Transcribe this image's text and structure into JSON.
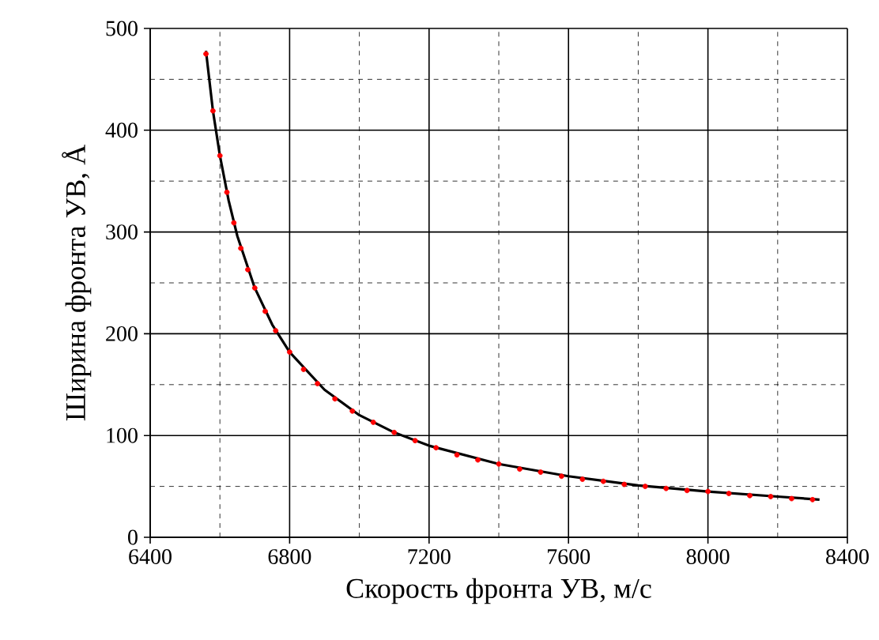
{
  "chart_data": {
    "type": "line",
    "xlabel": "Скорость фронта УВ, м/с",
    "ylabel": "Ширина фронта УВ, Å",
    "xlim": [
      6400,
      8400
    ],
    "xticks": [
      6400,
      6800,
      7200,
      7600,
      8000,
      8400
    ],
    "ylim": [
      0,
      500
    ],
    "yticks": [
      0,
      100,
      200,
      300,
      400,
      500
    ],
    "grid": true,
    "series": [
      {
        "color": "#000000",
        "x": [
          6560,
          6580,
          6600,
          6625,
          6650,
          6700,
          6750,
          6800,
          6900,
          7000,
          7100,
          7200,
          7400,
          7600,
          7800,
          8000,
          8200,
          8320
        ],
        "values": [
          478,
          419,
          375,
          331,
          296,
          245,
          209,
          182,
          145,
          120,
          103,
          90,
          72,
          60,
          51,
          45,
          40,
          37
        ]
      },
      {
        "type": "scatter",
        "color": "#ff0000",
        "marker": "circle",
        "x": [
          6560,
          6580,
          6600,
          6620,
          6640,
          6660,
          6680,
          6700,
          6730,
          6760,
          6800,
          6840,
          6880,
          6930,
          6980,
          7040,
          7100,
          7160,
          7220,
          7280,
          7340,
          7400,
          7460,
          7520,
          7580,
          7640,
          7700,
          7760,
          7820,
          7880,
          7940,
          8000,
          8060,
          8120,
          8180,
          8240,
          8300
        ],
        "values": [
          475,
          419,
          375,
          339,
          309,
          284,
          263,
          245,
          222,
          203,
          182,
          165,
          151,
          136,
          124,
          113,
          103,
          95,
          88,
          81,
          76,
          72,
          67,
          64,
          60,
          57,
          55,
          52,
          50,
          48,
          46,
          45,
          43,
          41,
          40,
          38,
          37
        ]
      }
    ]
  }
}
